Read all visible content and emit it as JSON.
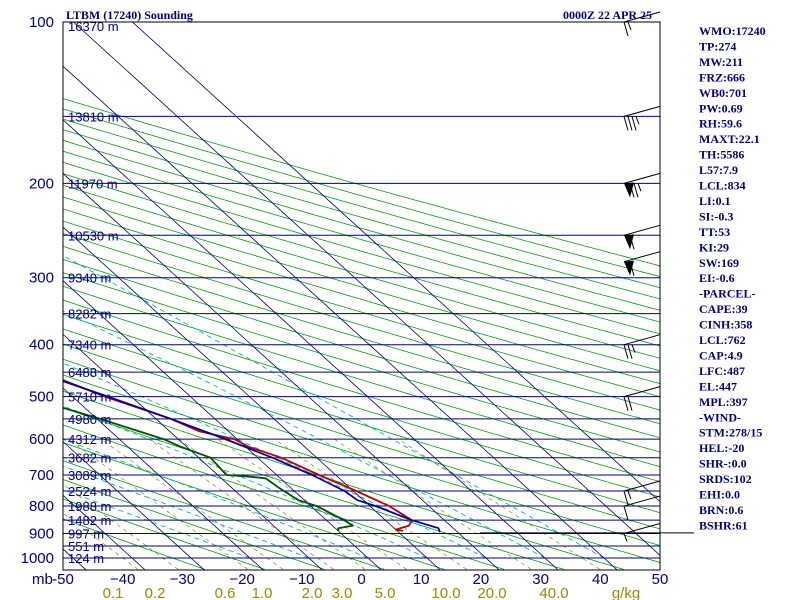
{
  "chart_data": {
    "type": "line",
    "title": "LTBM (17240) Sounding",
    "time_label": "0000Z 22 APR 25",
    "xlabel": "",
    "ylabel": "mb",
    "pressure_levels": [
      100,
      200,
      300,
      400,
      500,
      600,
      700,
      800,
      900,
      1000
    ],
    "pressure_tick_labels": [
      "100",
      "200",
      "300",
      "400",
      "500",
      "600",
      "700",
      "800",
      "900",
      "1000"
    ],
    "y_axis_unit": "mb",
    "xlim": [
      -50,
      50
    ],
    "temperature_ticks": [
      -50,
      -40,
      -30,
      -20,
      -10,
      0,
      10,
      20,
      30,
      40,
      50
    ],
    "temperature_tick_labels": [
      "-50",
      "−40",
      "−30",
      "−20",
      "−10",
      "0",
      "10",
      "20",
      "30",
      "40",
      "50"
    ],
    "mixing_ratio_labels": [
      "0.1",
      "0.2",
      "0.6",
      "1.0",
      "2.0",
      "3.0",
      "5.0",
      "10.0",
      "20.0",
      "40.0",
      "g/kg"
    ],
    "height_levels": [
      {
        "p": 150,
        "label": "13810 m"
      },
      {
        "p": 200,
        "label": "11970 m"
      },
      {
        "p": 250,
        "label": "10530 m"
      },
      {
        "p": 300,
        "label": "9340 m"
      },
      {
        "p": 350,
        "label": "8282 m"
      },
      {
        "p": 400,
        "label": "7340 m"
      },
      {
        "p": 450,
        "label": "6488 m"
      },
      {
        "p": 500,
        "label": "5710 m"
      },
      {
        "p": 550,
        "label": "4980 m"
      },
      {
        "p": 600,
        "label": "4312 m"
      },
      {
        "p": 650,
        "label": "3682 m"
      },
      {
        "p": 700,
        "label": "3089 m"
      },
      {
        "p": 750,
        "label": "2524 m"
      },
      {
        "p": 800,
        "label": "1988 m"
      },
      {
        "p": 850,
        "label": "1482 m"
      },
      {
        "p": 900,
        "label": "997 m"
      },
      {
        "p": 950,
        "label": "551 m"
      },
      {
        "p": 1000,
        "label": "124 m"
      }
    ],
    "top_height_label": "16370 m",
    "series": [
      {
        "name": "",
        "color": "#c00000",
        "points": [
          [
            100,
            -58.0
          ],
          [
            110,
            -60.0
          ],
          [
            130,
            -62.5
          ],
          [
            150,
            -63.0
          ],
          [
            170,
            -61.5
          ],
          [
            190,
            -60.5
          ],
          [
            210,
            -60.0
          ],
          [
            230,
            -58.5
          ],
          [
            250,
            -55.5
          ],
          [
            270,
            -51.5
          ],
          [
            285,
            -47.5
          ],
          [
            300,
            -44.0
          ],
          [
            330,
            -39.0
          ],
          [
            350,
            -37.0
          ],
          [
            380,
            -30.5
          ],
          [
            400,
            -27.5
          ],
          [
            420,
            -25.5
          ],
          [
            450,
            -20.5
          ],
          [
            500,
            -14.5
          ],
          [
            550,
            -7.5
          ],
          [
            580,
            -5.0
          ],
          [
            600,
            -0.5
          ],
          [
            620,
            0.5
          ],
          [
            650,
            4.0
          ],
          [
            700,
            7.2
          ],
          [
            750,
            10.5
          ],
          [
            800,
            13.3
          ],
          [
            850,
            14.5
          ],
          [
            870,
            13.0
          ],
          [
            885,
            10.0
          ],
          [
            890,
            11.0
          ]
        ]
      },
      {
        "name": "",
        "color": "#005000",
        "points": [
          [
            250,
            -63.0
          ],
          [
            270,
            -60.5
          ],
          [
            300,
            -55.5
          ],
          [
            330,
            -52.5
          ],
          [
            350,
            -48.5
          ],
          [
            380,
            -49.0
          ],
          [
            400,
            -47.5
          ],
          [
            420,
            -42.5
          ],
          [
            440,
            -35.5
          ],
          [
            470,
            -31.0
          ],
          [
            500,
            -28.0
          ],
          [
            550,
            -19.5
          ],
          [
            600,
            -12.5
          ],
          [
            620,
            -11.0
          ],
          [
            650,
            -8.0
          ],
          [
            700,
            -8.5
          ],
          [
            705,
            -5.0
          ],
          [
            710,
            -2.5
          ],
          [
            740,
            -2.0
          ],
          [
            780,
            -1.0
          ],
          [
            800,
            1.0
          ],
          [
            850,
            3.0
          ],
          [
            870,
            3.5
          ],
          [
            880,
            0.5
          ],
          [
            890,
            0.0
          ]
        ]
      },
      {
        "name": "",
        "color": "#0000a0",
        "points": [
          [
            160,
            -74.0
          ],
          [
            200,
            -69.0
          ],
          [
            250,
            -59.0
          ],
          [
            300,
            -49.0
          ],
          [
            350,
            -38.5
          ],
          [
            400,
            -29.5
          ],
          [
            450,
            -21.5
          ],
          [
            500,
            -14.0
          ],
          [
            550,
            -7.5
          ],
          [
            600,
            -2.0
          ],
          [
            650,
            2.5
          ],
          [
            700,
            6.0
          ],
          [
            750,
            8.5
          ],
          [
            780,
            9.0
          ],
          [
            800,
            11.0
          ],
          [
            850,
            14.5
          ],
          [
            880,
            17.5
          ],
          [
            895,
            17.0
          ]
        ]
      }
    ],
    "wind_barbs": [
      {
        "p": 100,
        "speed_kt": 15
      },
      {
        "p": 150,
        "speed_kt": 35
      },
      {
        "p": 200,
        "speed_kt": 75
      },
      {
        "p": 250,
        "speed_kt": 60
      },
      {
        "p": 280,
        "speed_kt": 60
      },
      {
        "p": 400,
        "speed_kt": 25
      },
      {
        "p": 500,
        "speed_kt": 20
      },
      {
        "p": 750,
        "speed_kt": 15
      },
      {
        "p": 800,
        "speed_kt": 10
      },
      {
        "p": 900,
        "speed_kt": 5
      }
    ],
    "grid": true,
    "colors": {
      "isobar": "#000080",
      "isotherm": "#000080",
      "dry_adiabat": "#00a000",
      "moist_adiabat": "#00b8b8",
      "mixing_ratio": "#a09040",
      "frame": "#000000"
    }
  },
  "indices": [
    "WMO:17240",
    "TP:274",
    "MW:211",
    "FRZ:666",
    "WB0:701",
    "PW:0.69",
    "RH:59.6",
    "MAXT:22.1",
    "TH:5586",
    "L57:7.9",
    "LCL:834",
    "LI:0.1",
    "SI:-0.3",
    "TT:53",
    "KI:29",
    "SW:169",
    "EI:-0.6",
    "-PARCEL-",
    "CAPE:39",
    "CINH:358",
    "LCL:762",
    "CAP:4.9",
    "LFC:487",
    "EL:447",
    "MPL:397",
    "-WIND-",
    "STM:278/15",
    "HEL:-20",
    "SHR-:0.0",
    "SRDS:102",
    "EHI:0.0",
    "BRN:0.6",
    "BSHR:61"
  ]
}
